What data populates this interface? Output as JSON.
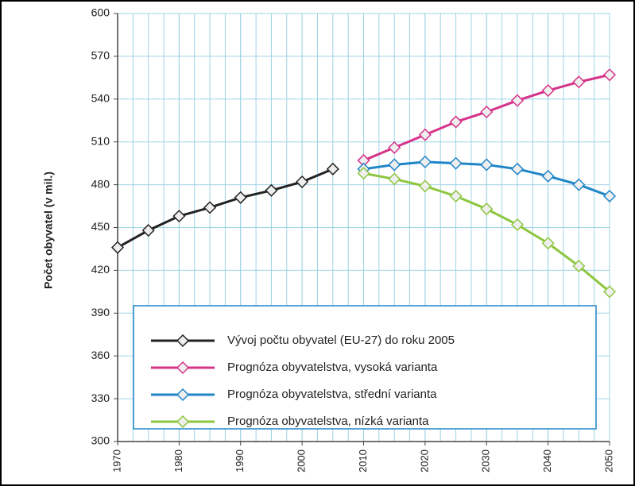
{
  "chart_data": {
    "type": "line",
    "y_label": "Počet obyvatel (v mil.)",
    "xlim": [
      1970,
      2050
    ],
    "xticks": [
      1970,
      1980,
      1990,
      2000,
      2010,
      2020,
      2030,
      2040,
      2050
    ],
    "x_minor_step": 2.5,
    "ylim": [
      300,
      600
    ],
    "yticks": [
      300,
      330,
      360,
      390,
      420,
      450,
      480,
      510,
      540,
      570,
      600
    ],
    "grid": true,
    "legend": "lower right",
    "series": [
      {
        "name": "Vývoj počtu obyvatel (EU-27) do roku 2005",
        "color": "#222222",
        "x": [
          1970,
          1975,
          1980,
          1985,
          1990,
          1995,
          2000,
          2005
        ],
        "values": [
          436,
          448,
          458,
          464,
          471,
          476,
          482,
          491
        ]
      },
      {
        "name": "Prognóza obyvatelstva, vysoká varianta",
        "color": "#d6338a",
        "x": [
          2010,
          2015,
          2020,
          2025,
          2030,
          2035,
          2040,
          2045,
          2050
        ],
        "values": [
          497,
          506,
          515,
          524,
          531,
          539,
          546,
          552,
          557
        ]
      },
      {
        "name": "Prognóza obyvatelstva, střední varianta",
        "color": "#1f86c8",
        "x": [
          2010,
          2015,
          2020,
          2025,
          2030,
          2035,
          2040,
          2045,
          2050
        ],
        "values": [
          491,
          494,
          496,
          495,
          494,
          491,
          486,
          480,
          472
        ]
      },
      {
        "name": "Prognóza obyvatelstva, nízká varianta",
        "color": "#8dc63f",
        "x": [
          2010,
          2015,
          2020,
          2025,
          2030,
          2035,
          2040,
          2045,
          2050
        ],
        "values": [
          488,
          484,
          479,
          472,
          463,
          452,
          439,
          423,
          405
        ]
      }
    ]
  }
}
